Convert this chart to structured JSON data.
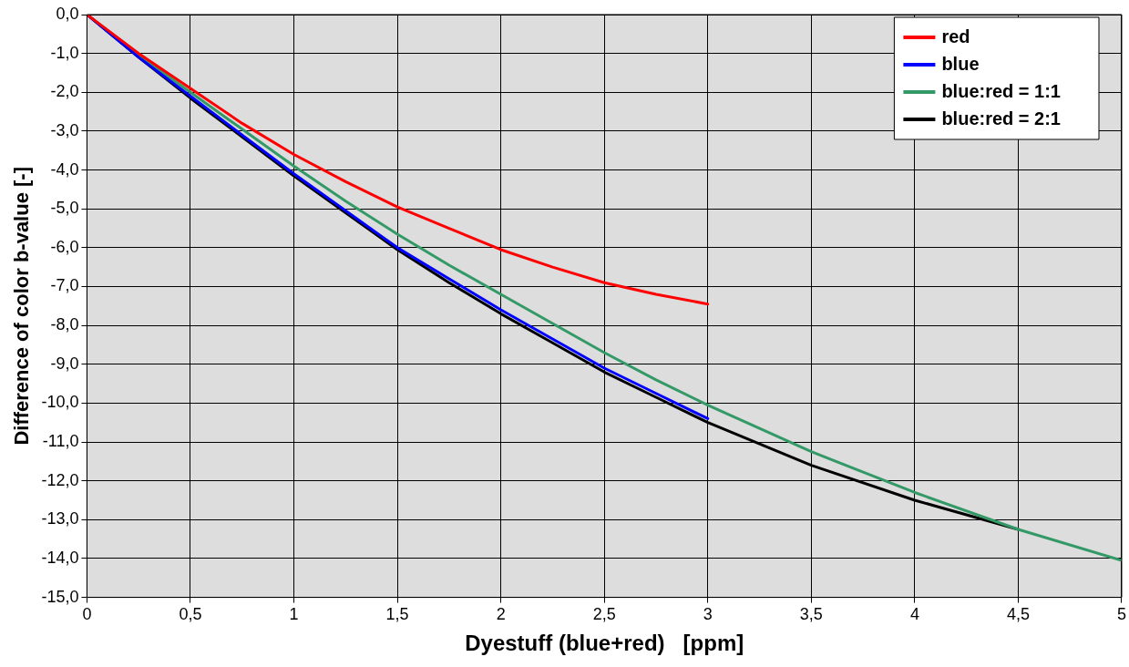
{
  "chart_data": {
    "type": "line",
    "xlabel": "Dyestuff (blue+red)   [ppm]",
    "ylabel": "Difference of color b-value [-]",
    "xlim": [
      0,
      5
    ],
    "xticks": [
      0,
      {
        "value": 0.5,
        "label": "0,5"
      },
      1,
      {
        "value": 1.5,
        "label": "1,5"
      },
      2,
      {
        "value": 2.5,
        "label": "2,5"
      },
      3,
      {
        "value": 3.5,
        "label": "3,5"
      },
      4,
      {
        "value": 4.5,
        "label": "4,5"
      },
      5
    ],
    "ylim": [
      -15,
      0
    ],
    "yticks": [
      {
        "value": 0,
        "label": "0,0"
      },
      {
        "value": -1,
        "label": "-1,0"
      },
      {
        "value": -2,
        "label": "-2,0"
      },
      {
        "value": -3,
        "label": "-3,0"
      },
      {
        "value": -4,
        "label": "-4,0"
      },
      {
        "value": -5,
        "label": "-5,0"
      },
      {
        "value": -6,
        "label": "-6,0"
      },
      {
        "value": -7,
        "label": "-7,0"
      },
      {
        "value": -8,
        "label": "-8,0"
      },
      {
        "value": -9,
        "label": "-9,0"
      },
      {
        "value": -10,
        "label": "-10,0"
      },
      {
        "value": -11,
        "label": "-11,0"
      },
      {
        "value": -12,
        "label": "-12,0"
      },
      {
        "value": -13,
        "label": "-13,0"
      },
      {
        "value": -14,
        "label": "-14,0"
      },
      {
        "value": -15,
        "label": "-15,0"
      }
    ],
    "grid": true,
    "legend": "top right",
    "marker": "none",
    "line_style": "solid",
    "series": [
      {
        "name": "red",
        "color": "#ff0000",
        "x": [
          0,
          0.25,
          0.5,
          0.75,
          1,
          1.25,
          1.5,
          1.75,
          2,
          2.25,
          2.5,
          2.75,
          3
        ],
        "values": [
          0,
          -1.0,
          -1.9,
          -2.8,
          -3.6,
          -4.3,
          -4.95,
          -5.5,
          -6.05,
          -6.5,
          -6.9,
          -7.2,
          -7.45
        ]
      },
      {
        "name": "blue",
        "color": "#0000ff",
        "x": [
          0,
          0.25,
          0.5,
          0.75,
          1,
          1.25,
          1.5,
          1.75,
          2,
          2.25,
          2.5,
          2.75,
          3
        ],
        "values": [
          0,
          -1.1,
          -2.1,
          -3.1,
          -4.1,
          -5.05,
          -6.0,
          -6.8,
          -7.6,
          -8.35,
          -9.1,
          -9.75,
          -10.4
        ]
      },
      {
        "name": "blue:red = 1:1",
        "color": "#339966",
        "x": [
          0,
          0.25,
          0.5,
          0.75,
          1,
          1.25,
          1.5,
          1.75,
          2,
          2.25,
          2.5,
          2.75,
          3,
          3.5,
          4,
          4.5,
          5
        ],
        "values": [
          0,
          -1.05,
          -2.0,
          -2.95,
          -3.9,
          -4.8,
          -5.65,
          -6.45,
          -7.2,
          -7.95,
          -8.7,
          -9.4,
          -10.05,
          -11.25,
          -12.3,
          -13.25,
          -14.05
        ]
      },
      {
        "name": "blue:red = 2:1",
        "color": "#000000",
        "x": [
          0,
          0.25,
          0.5,
          0.75,
          1,
          1.25,
          1.5,
          1.75,
          2,
          2.25,
          2.5,
          2.75,
          3,
          3.5,
          4,
          4.5
        ],
        "values": [
          0,
          -1.1,
          -2.15,
          -3.15,
          -4.15,
          -5.1,
          -6.05,
          -6.9,
          -7.7,
          -8.45,
          -9.2,
          -9.85,
          -10.5,
          -11.6,
          -12.5,
          -13.25
        ]
      }
    ]
  }
}
